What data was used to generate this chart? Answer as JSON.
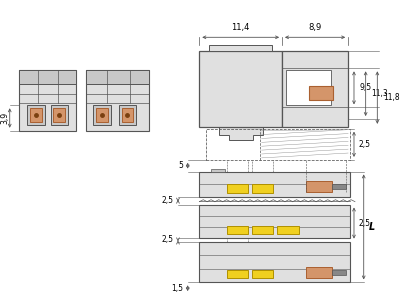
{
  "bg_color": "#ffffff",
  "line_color": "#555555",
  "gray_fill": "#c8c8c8",
  "light_gray": "#e0e0e0",
  "orange_fill": "#d4956a",
  "yellow_fill": "#f0d020",
  "dark_gray": "#888888",
  "dim_3_9": "3,9",
  "dim_11_4": "11,4",
  "dim_8_9": "8,9",
  "dim_9_5": "9,5",
  "dim_11_3": "11,3",
  "dim_11_8": "11,8",
  "dim_5": "5",
  "dim_2_5a": "2,5",
  "dim_2_5b": "2,5",
  "dim_2_5c": "2,5",
  "dim_2_5d": "2,5",
  "dim_1_5": "1,5",
  "dim_L": "L"
}
